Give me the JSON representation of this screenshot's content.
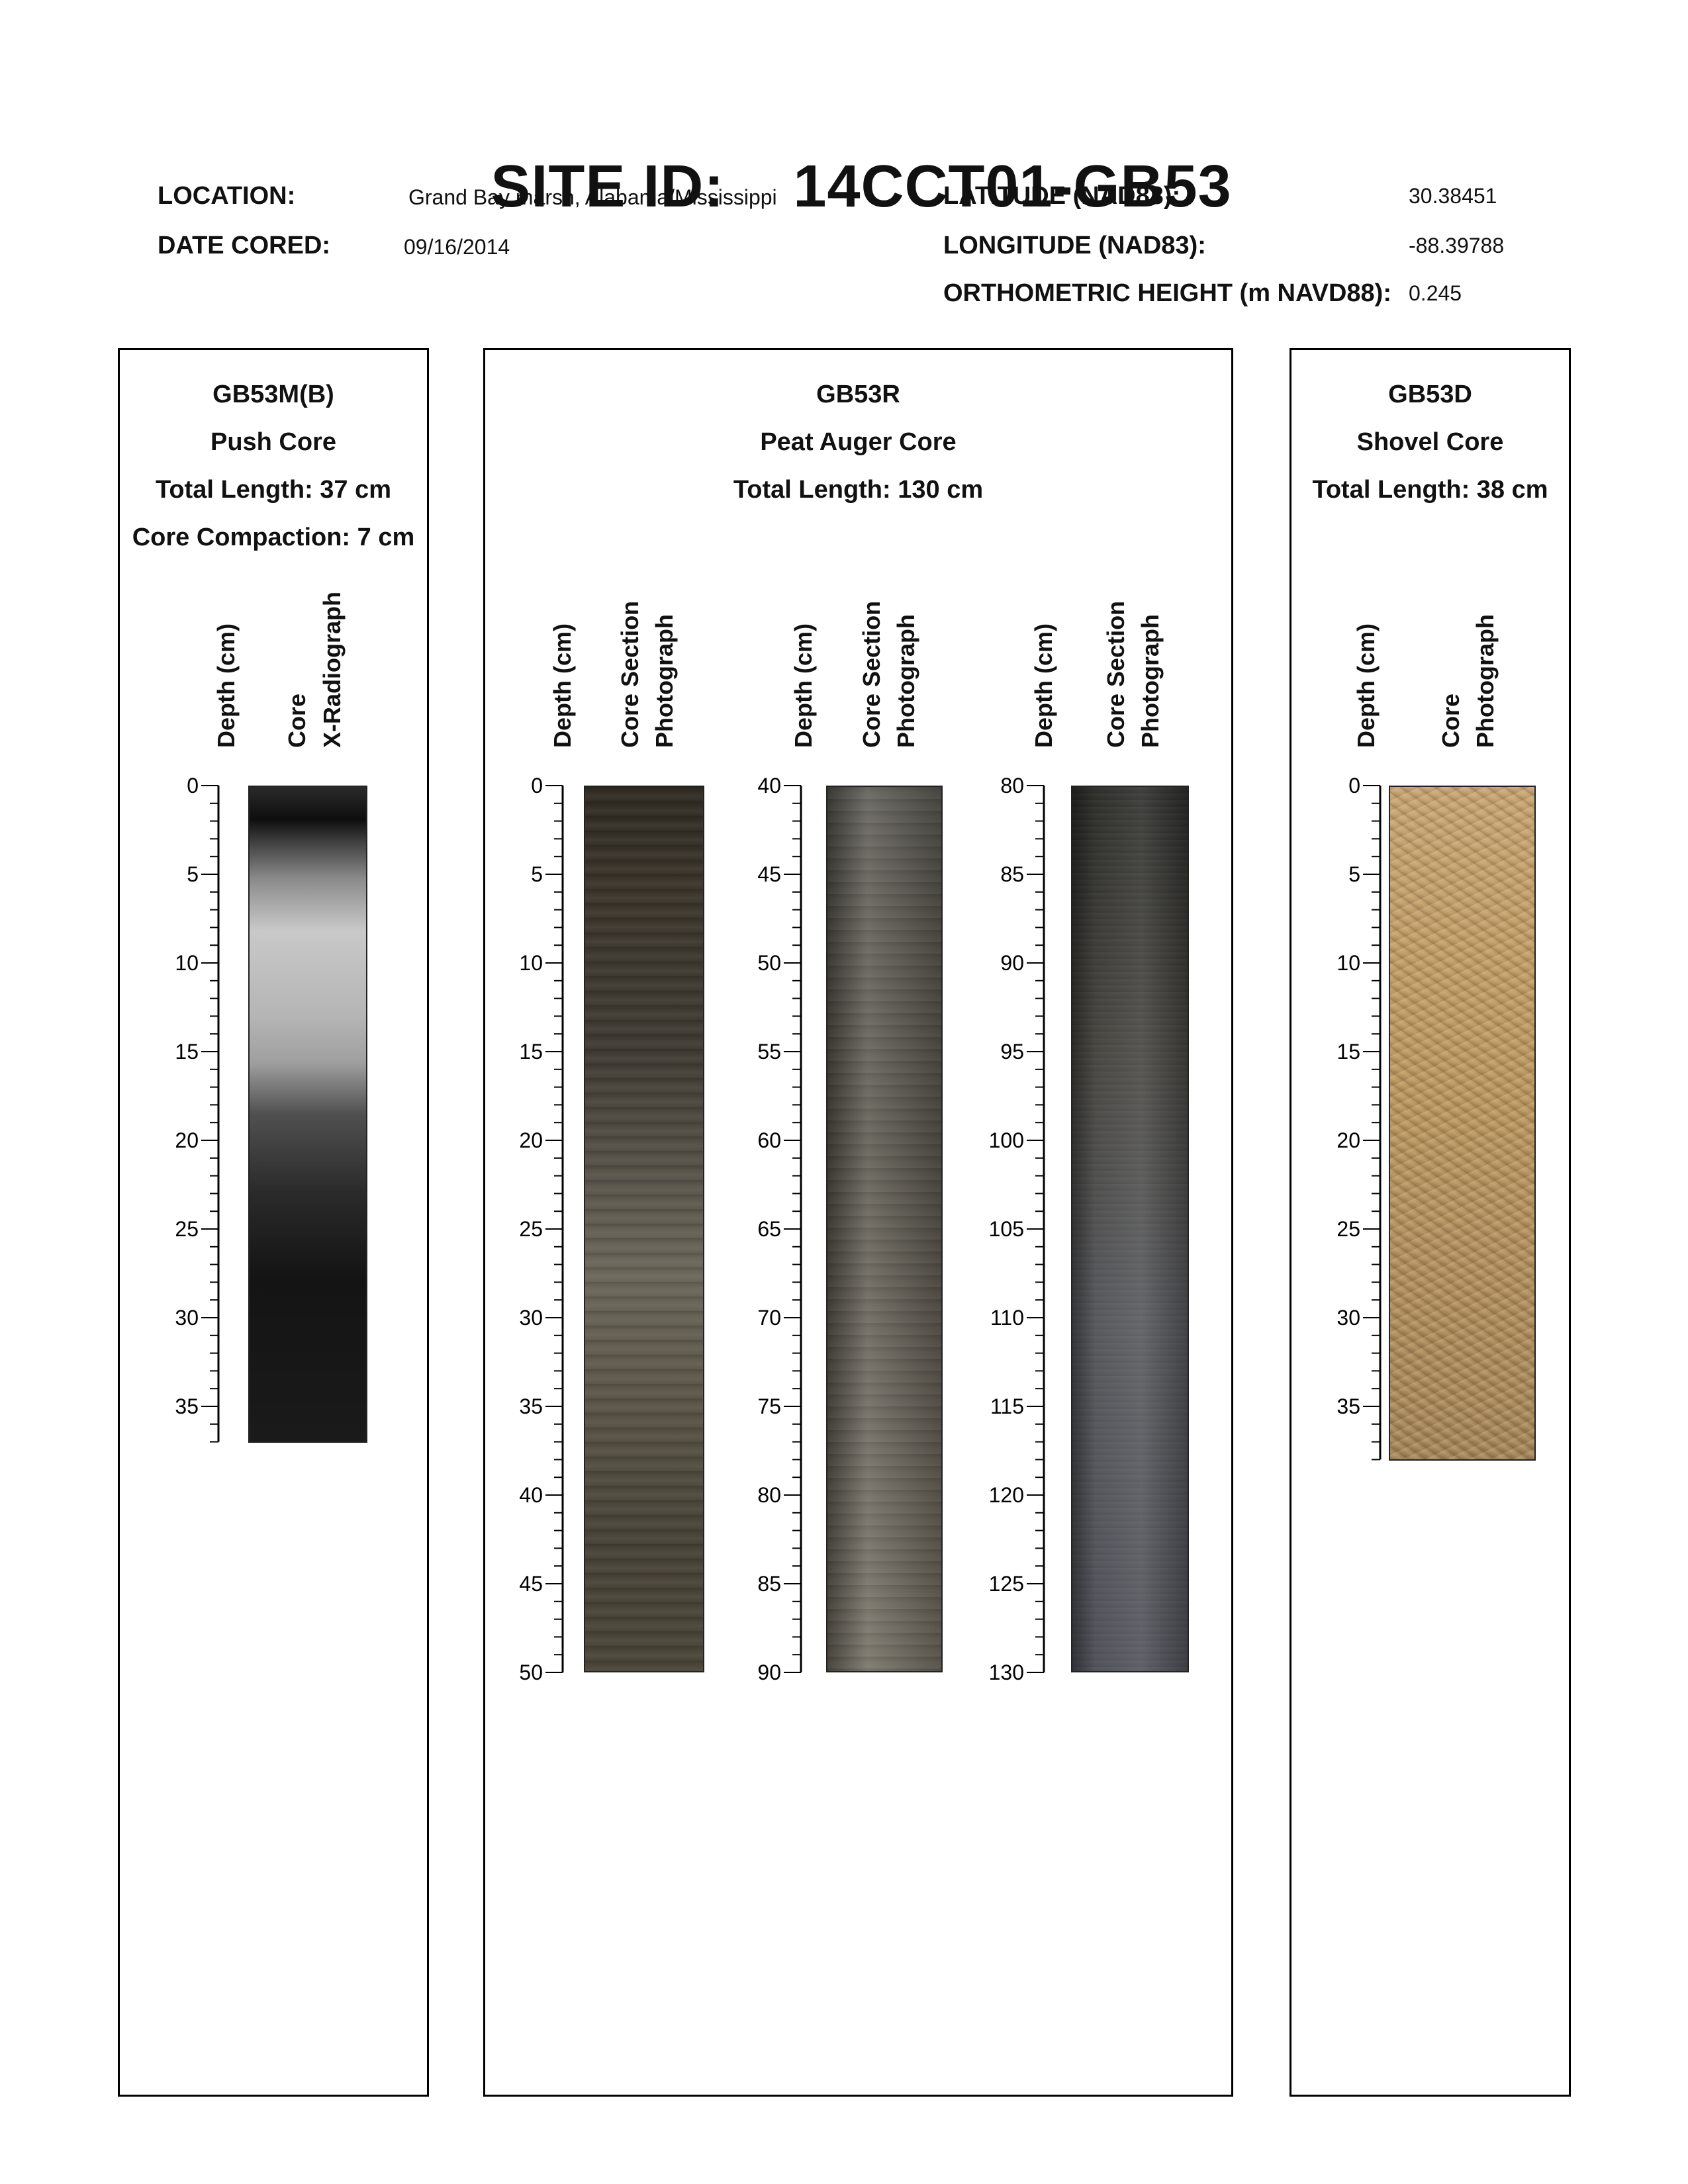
{
  "header": {
    "site_label": "SITE ID:",
    "site_id": "14CCT01-GB53",
    "location_label": "LOCATION:",
    "location_value": "Grand Bay marsh, Alabama/Mississippi",
    "date_label": "DATE CORED:",
    "date_value": "09/16/2014",
    "latitude_label": "LATITUDE (NAD83):",
    "latitude_value": "30.38451",
    "longitude_label": "LONGITUDE (NAD83):",
    "longitude_value": "-88.39788",
    "height_label": "ORTHOMETRIC HEIGHT (m NAVD88):",
    "height_value": "0.245"
  },
  "panels": {
    "push": {
      "id": "GB53M(B)",
      "type": "Push Core",
      "length": "Total Length: 37 cm",
      "compaction": "Core Compaction: 7 cm",
      "depth_label": "Depth (cm)",
      "image_label_line1": "Core",
      "image_label_line2": "X-Radiograph",
      "scale": {
        "start": 0,
        "end": 37,
        "labels": [
          0,
          5,
          10,
          15,
          20,
          25,
          30,
          35
        ]
      }
    },
    "auger": {
      "id": "GB53R",
      "type": "Peat Auger Core",
      "length": "Total Length: 130 cm",
      "sections": [
        {
          "depth_label": "Depth (cm)",
          "image_label_line1": "Core Section",
          "image_label_line2": "Photograph",
          "scale": {
            "start": 0,
            "end": 50,
            "labels": [
              0,
              5,
              10,
              15,
              20,
              25,
              30,
              35,
              40,
              45,
              50
            ]
          }
        },
        {
          "depth_label": "Depth (cm)",
          "image_label_line1": "Core Section",
          "image_label_line2": "Photograph",
          "scale": {
            "start": 40,
            "end": 90,
            "labels": [
              40,
              45,
              50,
              55,
              60,
              65,
              70,
              75,
              80,
              85,
              90
            ]
          }
        },
        {
          "depth_label": "Depth (cm)",
          "image_label_line1": "Core Section",
          "image_label_line2": "Photograph",
          "scale": {
            "start": 80,
            "end": 130,
            "labels": [
              80,
              85,
              90,
              95,
              100,
              105,
              110,
              115,
              120,
              125,
              130
            ]
          }
        }
      ]
    },
    "shovel": {
      "id": "GB53D",
      "type": "Shovel Core",
      "length": "Total Length: 38 cm",
      "depth_label": "Depth (cm)",
      "image_label_line1": "Core",
      "image_label_line2": "Photograph",
      "scale": {
        "start": 0,
        "end": 38,
        "labels": [
          0,
          5,
          10,
          15,
          20,
          25,
          30,
          35
        ]
      }
    }
  },
  "colors": {
    "xray_dark": "#141414",
    "xray_light": "#c9c9c9",
    "auger_dark": "#3f3b33",
    "auger_mid": "#5a564c",
    "shovel_tan": "#c4a373"
  }
}
